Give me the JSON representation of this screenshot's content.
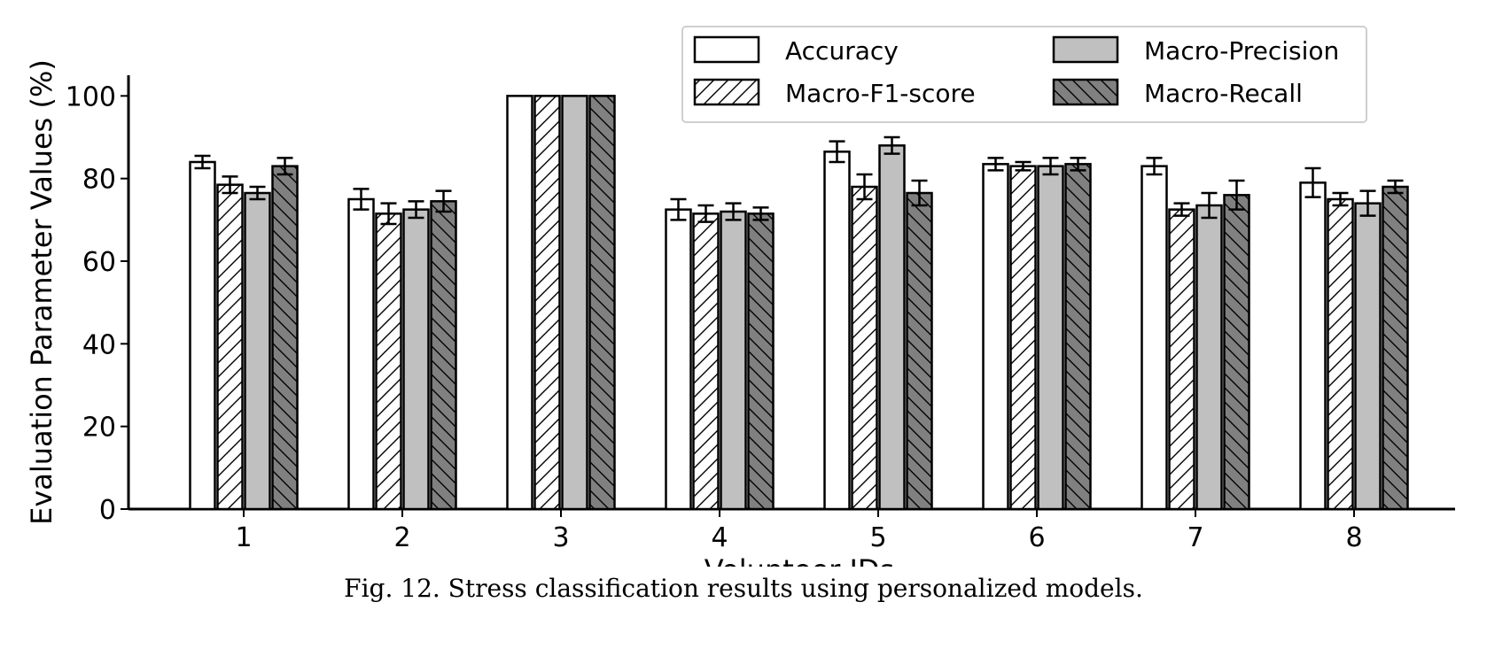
{
  "caption": "Fig. 12.  Stress classification results using personalized models.",
  "chart_data": {
    "type": "bar",
    "title": "",
    "xlabel": "Volunteer IDs",
    "ylabel": "Evaluation Parameter Values (%)",
    "ylim": [
      0,
      105
    ],
    "yticks": [
      0,
      20,
      40,
      60,
      80,
      100
    ],
    "grid": false,
    "legend_position": "top-right",
    "categories": [
      "1",
      "2",
      "3",
      "4",
      "5",
      "6",
      "7",
      "8"
    ],
    "series": [
      {
        "name": "Accuracy",
        "values": [
          84,
          75,
          100,
          72.5,
          86.5,
          83.5,
          83,
          79
        ],
        "errors": [
          1.5,
          2.5,
          0,
          2.5,
          2.5,
          1.5,
          2,
          3.5
        ],
        "fill": "#ffffff",
        "hatch": "none"
      },
      {
        "name": "Macro-F1-score",
        "values": [
          78.5,
          71.5,
          100,
          71.5,
          78,
          83,
          72.5,
          75
        ],
        "errors": [
          2,
          2.5,
          0,
          2,
          3,
          1,
          1.5,
          1.5
        ],
        "fill": "#ffffff",
        "hatch": "forward"
      },
      {
        "name": "Macro-Precision",
        "values": [
          76.5,
          72.5,
          100,
          72,
          88,
          83,
          73.5,
          74
        ],
        "errors": [
          1.5,
          2,
          0,
          2,
          2,
          2,
          3,
          3
        ],
        "fill": "#c0c0c0",
        "hatch": "none"
      },
      {
        "name": "Macro-Recall",
        "values": [
          83,
          74.5,
          100,
          71.5,
          76.5,
          83.5,
          76,
          78
        ],
        "errors": [
          2,
          2.5,
          0,
          1.5,
          3,
          1.5,
          3.5,
          1.5
        ],
        "fill": "#808080",
        "hatch": "back"
      }
    ]
  }
}
